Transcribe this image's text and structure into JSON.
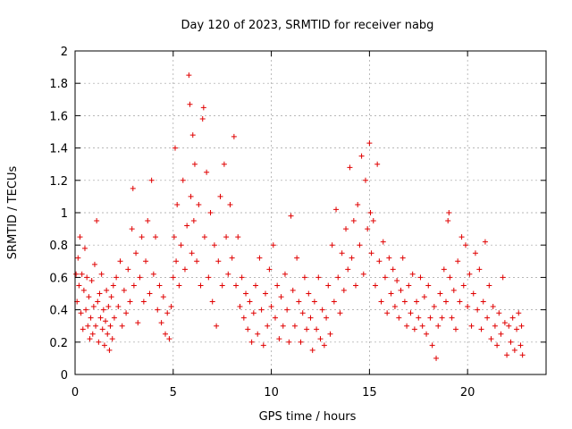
{
  "chart_data": {
    "type": "scatter",
    "title": "Day 120 of 2023, SRMTID for receiver nabg",
    "xlabel": "GPS time / hours",
    "ylabel": "SRMTID / TECUs",
    "xlim": [
      0,
      24
    ],
    "ylim": [
      0,
      2
    ],
    "xticks": [
      0,
      5,
      10,
      15,
      20
    ],
    "xtick_labels": [
      "0",
      "5",
      "10",
      "15",
      "20"
    ],
    "yticks": [
      0,
      0.2,
      0.4,
      0.6,
      0.8,
      1,
      1.2,
      1.4,
      1.6,
      1.8,
      2
    ],
    "ytick_labels": [
      "0",
      "0.2",
      "0.4",
      "0.6",
      "0.8",
      "1",
      "1.2",
      "1.4",
      "1.6",
      "1.8",
      "2"
    ],
    "grid": true,
    "marker": "plus",
    "color": "#e00000",
    "series": [
      {
        "name": "SRMTID",
        "points": [
          [
            0.05,
            0.62
          ],
          [
            0.1,
            0.45
          ],
          [
            0.15,
            0.72
          ],
          [
            0.2,
            0.55
          ],
          [
            0.25,
            0.85
          ],
          [
            0.3,
            0.38
          ],
          [
            0.35,
            0.62
          ],
          [
            0.4,
            0.28
          ],
          [
            0.45,
            0.52
          ],
          [
            0.5,
            0.78
          ],
          [
            0.55,
            0.4
          ],
          [
            0.6,
            0.6
          ],
          [
            0.65,
            0.3
          ],
          [
            0.7,
            0.48
          ],
          [
            0.75,
            0.22
          ],
          [
            0.8,
            0.35
          ],
          [
            0.85,
            0.58
          ],
          [
            0.9,
            0.25
          ],
          [
            0.95,
            0.42
          ],
          [
            1.0,
            0.68
          ],
          [
            1.05,
            0.3
          ],
          [
            1.1,
            0.95
          ],
          [
            1.15,
            0.45
          ],
          [
            1.2,
            0.2
          ],
          [
            1.25,
            0.5
          ],
          [
            1.3,
            0.35
          ],
          [
            1.35,
            0.62
          ],
          [
            1.4,
            0.28
          ],
          [
            1.45,
            0.4
          ],
          [
            1.5,
            0.18
          ],
          [
            1.55,
            0.33
          ],
          [
            1.6,
            0.52
          ],
          [
            1.65,
            0.25
          ],
          [
            1.7,
            0.42
          ],
          [
            1.75,
            0.15
          ],
          [
            1.8,
            0.3
          ],
          [
            1.85,
            0.48
          ],
          [
            1.9,
            0.22
          ],
          [
            1.95,
            0.55
          ],
          [
            2.0,
            0.35
          ],
          [
            2.1,
            0.6
          ],
          [
            2.2,
            0.42
          ],
          [
            2.3,
            0.7
          ],
          [
            2.4,
            0.3
          ],
          [
            2.5,
            0.52
          ],
          [
            2.6,
            0.38
          ],
          [
            2.7,
            0.65
          ],
          [
            2.8,
            0.45
          ],
          [
            2.9,
            0.9
          ],
          [
            2.95,
            1.15
          ],
          [
            3.0,
            0.55
          ],
          [
            3.1,
            0.75
          ],
          [
            3.2,
            0.32
          ],
          [
            3.3,
            0.6
          ],
          [
            3.4,
            0.85
          ],
          [
            3.5,
            0.45
          ],
          [
            3.6,
            0.7
          ],
          [
            3.7,
            0.95
          ],
          [
            3.8,
            0.5
          ],
          [
            3.9,
            1.2
          ],
          [
            4.0,
            0.62
          ],
          [
            4.1,
            0.85
          ],
          [
            4.2,
            0.4
          ],
          [
            4.3,
            0.55
          ],
          [
            4.4,
            0.32
          ],
          [
            4.5,
            0.48
          ],
          [
            4.6,
            0.25
          ],
          [
            4.7,
            0.38
          ],
          [
            4.8,
            0.22
          ],
          [
            4.9,
            0.42
          ],
          [
            5.0,
            0.6
          ],
          [
            5.05,
            0.85
          ],
          [
            5.1,
            1.4
          ],
          [
            5.15,
            0.7
          ],
          [
            5.2,
            1.05
          ],
          [
            5.3,
            0.55
          ],
          [
            5.4,
            0.8
          ],
          [
            5.5,
            1.2
          ],
          [
            5.6,
            0.65
          ],
          [
            5.7,
            0.92
          ],
          [
            5.8,
            1.85
          ],
          [
            5.85,
            1.67
          ],
          [
            5.9,
            1.1
          ],
          [
            5.95,
            0.75
          ],
          [
            6.0,
            1.48
          ],
          [
            6.05,
            0.95
          ],
          [
            6.1,
            1.3
          ],
          [
            6.2,
            0.7
          ],
          [
            6.3,
            1.05
          ],
          [
            6.4,
            0.55
          ],
          [
            6.5,
            1.58
          ],
          [
            6.55,
            1.65
          ],
          [
            6.6,
            0.85
          ],
          [
            6.7,
            1.25
          ],
          [
            6.8,
            0.6
          ],
          [
            6.9,
            1.0
          ],
          [
            7.0,
            0.45
          ],
          [
            7.1,
            0.8
          ],
          [
            7.2,
            0.3
          ],
          [
            7.3,
            0.7
          ],
          [
            7.4,
            1.1
          ],
          [
            7.5,
            0.55
          ],
          [
            7.6,
            1.3
          ],
          [
            7.7,
            0.85
          ],
          [
            7.8,
            0.62
          ],
          [
            7.9,
            1.05
          ],
          [
            8.0,
            0.72
          ],
          [
            8.1,
            1.47
          ],
          [
            8.2,
            0.55
          ],
          [
            8.3,
            0.85
          ],
          [
            8.4,
            0.42
          ],
          [
            8.5,
            0.6
          ],
          [
            8.6,
            0.35
          ],
          [
            8.7,
            0.5
          ],
          [
            8.8,
            0.28
          ],
          [
            8.9,
            0.45
          ],
          [
            9.0,
            0.2
          ],
          [
            9.1,
            0.38
          ],
          [
            9.2,
            0.55
          ],
          [
            9.3,
            0.25
          ],
          [
            9.4,
            0.72
          ],
          [
            9.5,
            0.4
          ],
          [
            9.6,
            0.18
          ],
          [
            9.7,
            0.5
          ],
          [
            9.8,
            0.3
          ],
          [
            9.9,
            0.65
          ],
          [
            10.0,
            0.42
          ],
          [
            10.1,
            0.8
          ],
          [
            10.2,
            0.35
          ],
          [
            10.3,
            0.55
          ],
          [
            10.4,
            0.22
          ],
          [
            10.5,
            0.48
          ],
          [
            10.6,
            0.3
          ],
          [
            10.7,
            0.62
          ],
          [
            10.8,
            0.4
          ],
          [
            10.9,
            0.2
          ],
          [
            11.0,
            0.98
          ],
          [
            11.1,
            0.52
          ],
          [
            11.2,
            0.3
          ],
          [
            11.3,
            0.72
          ],
          [
            11.4,
            0.45
          ],
          [
            11.5,
            0.2
          ],
          [
            11.6,
            0.38
          ],
          [
            11.7,
            0.6
          ],
          [
            11.8,
            0.28
          ],
          [
            11.9,
            0.5
          ],
          [
            12.0,
            0.35
          ],
          [
            12.1,
            0.15
          ],
          [
            12.2,
            0.45
          ],
          [
            12.3,
            0.28
          ],
          [
            12.4,
            0.6
          ],
          [
            12.5,
            0.22
          ],
          [
            12.6,
            0.4
          ],
          [
            12.7,
            0.18
          ],
          [
            12.8,
            0.35
          ],
          [
            12.9,
            0.55
          ],
          [
            13.0,
            0.25
          ],
          [
            13.1,
            0.8
          ],
          [
            13.2,
            0.45
          ],
          [
            13.3,
            1.02
          ],
          [
            13.4,
            0.6
          ],
          [
            13.5,
            0.38
          ],
          [
            13.6,
            0.75
          ],
          [
            13.7,
            0.52
          ],
          [
            13.8,
            0.9
          ],
          [
            13.9,
            0.65
          ],
          [
            14.0,
            1.28
          ],
          [
            14.1,
            0.72
          ],
          [
            14.2,
            0.95
          ],
          [
            14.3,
            0.55
          ],
          [
            14.4,
            1.05
          ],
          [
            14.5,
            0.8
          ],
          [
            14.6,
            1.35
          ],
          [
            14.7,
            0.62
          ],
          [
            14.8,
            1.2
          ],
          [
            14.9,
            0.9
          ],
          [
            15.0,
            1.43
          ],
          [
            15.05,
            1.0
          ],
          [
            15.1,
            0.75
          ],
          [
            15.2,
            0.95
          ],
          [
            15.3,
            0.55
          ],
          [
            15.4,
            1.3
          ],
          [
            15.5,
            0.7
          ],
          [
            15.6,
            0.45
          ],
          [
            15.7,
            0.82
          ],
          [
            15.8,
            0.6
          ],
          [
            15.9,
            0.38
          ],
          [
            16.0,
            0.72
          ],
          [
            16.1,
            0.5
          ],
          [
            16.2,
            0.65
          ],
          [
            16.3,
            0.42
          ],
          [
            16.4,
            0.58
          ],
          [
            16.5,
            0.35
          ],
          [
            16.6,
            0.52
          ],
          [
            16.7,
            0.72
          ],
          [
            16.8,
            0.45
          ],
          [
            16.9,
            0.3
          ],
          [
            17.0,
            0.55
          ],
          [
            17.1,
            0.38
          ],
          [
            17.2,
            0.62
          ],
          [
            17.3,
            0.28
          ],
          [
            17.4,
            0.45
          ],
          [
            17.5,
            0.35
          ],
          [
            17.6,
            0.6
          ],
          [
            17.7,
            0.3
          ],
          [
            17.8,
            0.48
          ],
          [
            17.9,
            0.25
          ],
          [
            18.0,
            0.55
          ],
          [
            18.1,
            0.35
          ],
          [
            18.2,
            0.18
          ],
          [
            18.3,
            0.42
          ],
          [
            18.4,
            0.1
          ],
          [
            18.5,
            0.3
          ],
          [
            18.6,
            0.5
          ],
          [
            18.7,
            0.35
          ],
          [
            18.8,
            0.65
          ],
          [
            18.9,
            0.45
          ],
          [
            19.0,
            0.95
          ],
          [
            19.05,
            1.0
          ],
          [
            19.1,
            0.6
          ],
          [
            19.2,
            0.35
          ],
          [
            19.3,
            0.52
          ],
          [
            19.4,
            0.28
          ],
          [
            19.5,
            0.7
          ],
          [
            19.6,
            0.45
          ],
          [
            19.7,
            0.85
          ],
          [
            19.8,
            0.55
          ],
          [
            19.9,
            0.8
          ],
          [
            20.0,
            0.42
          ],
          [
            20.1,
            0.62
          ],
          [
            20.2,
            0.3
          ],
          [
            20.3,
            0.5
          ],
          [
            20.4,
            0.75
          ],
          [
            20.5,
            0.4
          ],
          [
            20.6,
            0.65
          ],
          [
            20.7,
            0.28
          ],
          [
            20.8,
            0.45
          ],
          [
            20.9,
            0.82
          ],
          [
            21.0,
            0.35
          ],
          [
            21.1,
            0.55
          ],
          [
            21.2,
            0.22
          ],
          [
            21.3,
            0.42
          ],
          [
            21.4,
            0.3
          ],
          [
            21.5,
            0.18
          ],
          [
            21.6,
            0.38
          ],
          [
            21.7,
            0.25
          ],
          [
            21.8,
            0.6
          ],
          [
            21.9,
            0.32
          ],
          [
            22.0,
            0.12
          ],
          [
            22.1,
            0.3
          ],
          [
            22.2,
            0.2
          ],
          [
            22.3,
            0.35
          ],
          [
            22.4,
            0.15
          ],
          [
            22.5,
            0.28
          ],
          [
            22.6,
            0.38
          ],
          [
            22.7,
            0.18
          ],
          [
            22.75,
            0.3
          ],
          [
            22.8,
            0.12
          ]
        ]
      }
    ]
  }
}
